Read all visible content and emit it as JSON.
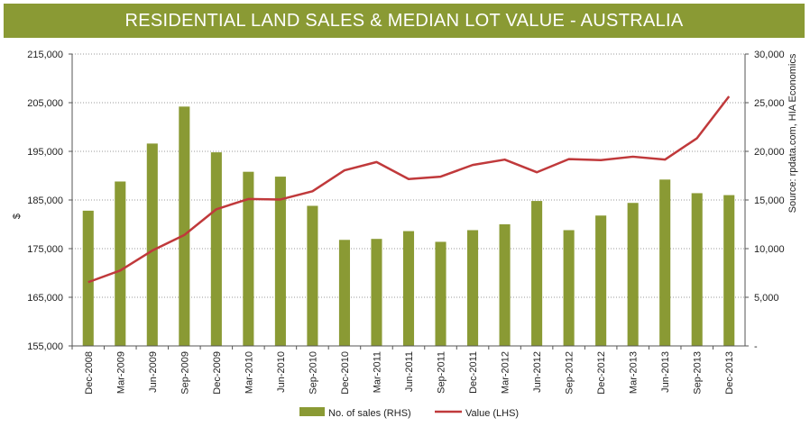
{
  "chart_data": {
    "type": "bar+line",
    "title": "RESIDENTIAL LAND SALES & MEDIAN LOT VALUE - AUSTRALIA",
    "ylabel": "$",
    "source": "Source: rpdata.com, HIA Economics",
    "categories": [
      "Dec-2008",
      "Mar-2009",
      "Jun-2009",
      "Sep-2009",
      "Dec-2009",
      "Mar-2010",
      "Jun-2010",
      "Sep-2010",
      "Dec-2010",
      "Mar-2011",
      "Jun-2011",
      "Sep-2011",
      "Dec-2011",
      "Mar-2012",
      "Jun-2012",
      "Sep-2012",
      "Dec-2012",
      "Mar-2013",
      "Jun-2013",
      "Sep-2013",
      "Dec-2013"
    ],
    "left_axis": {
      "min": 155000,
      "max": 215000,
      "ticks": [
        "155,000",
        "165,000",
        "175,000",
        "185,000",
        "195,000",
        "205,000",
        "215,000"
      ]
    },
    "right_axis": {
      "min": 0,
      "max": 30000,
      "ticks": [
        "-",
        "5,000",
        "10,000",
        "15,000",
        "20,000",
        "25,000",
        "30,000"
      ]
    },
    "series": [
      {
        "name": "No. of sales (RHS)",
        "type": "bar",
        "axis": "right",
        "color": "#8a9a34",
        "values": [
          13900,
          16900,
          20800,
          24600,
          19900,
          17900,
          17400,
          14400,
          10900,
          11000,
          11800,
          10700,
          11900,
          12500,
          14900,
          11900,
          13400,
          14700,
          17100,
          15700,
          15500
        ]
      },
      {
        "name": "Value (LHS)",
        "type": "line",
        "axis": "left",
        "color": "#c0393b",
        "values": [
          168100,
          170500,
          174600,
          177800,
          183100,
          185200,
          185100,
          186800,
          191100,
          192800,
          189300,
          189800,
          192200,
          193300,
          190700,
          193400,
          193200,
          193900,
          193300,
          197700,
          206300
        ]
      }
    ]
  }
}
